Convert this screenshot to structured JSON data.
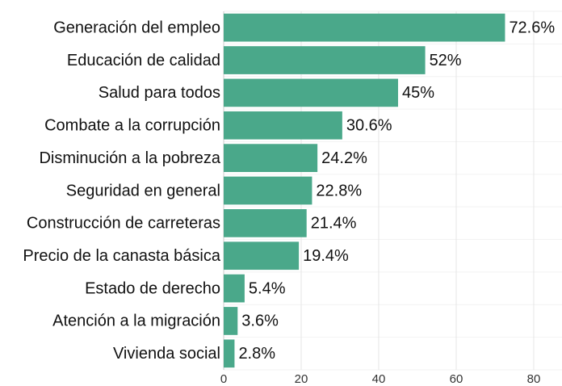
{
  "chart_data": {
    "type": "barh",
    "categories": [
      "Generación del empleo",
      "Educación de calidad",
      "Salud para todos",
      "Combate a la corrupción",
      "Disminución a la pobreza",
      "Seguridad en general",
      "Construcción de carreteras",
      "Precio de la canasta básica",
      "Estado de derecho",
      "Atención a la migración",
      "Vivienda social"
    ],
    "values": [
      72.6,
      52,
      45,
      30.6,
      24.2,
      22.8,
      21.4,
      19.4,
      5.4,
      3.6,
      2.8
    ],
    "value_labels": [
      "72.6%",
      "52%",
      "45%",
      "30.6%",
      "24.2%",
      "22.8%",
      "21.4%",
      "19.4%",
      "5.4%",
      "3.6%",
      "2.8%"
    ],
    "color": "#4aa88a",
    "xlim": [
      0,
      87.3
    ],
    "xticks": [
      0,
      20,
      40,
      60,
      80
    ],
    "grid": true
  }
}
